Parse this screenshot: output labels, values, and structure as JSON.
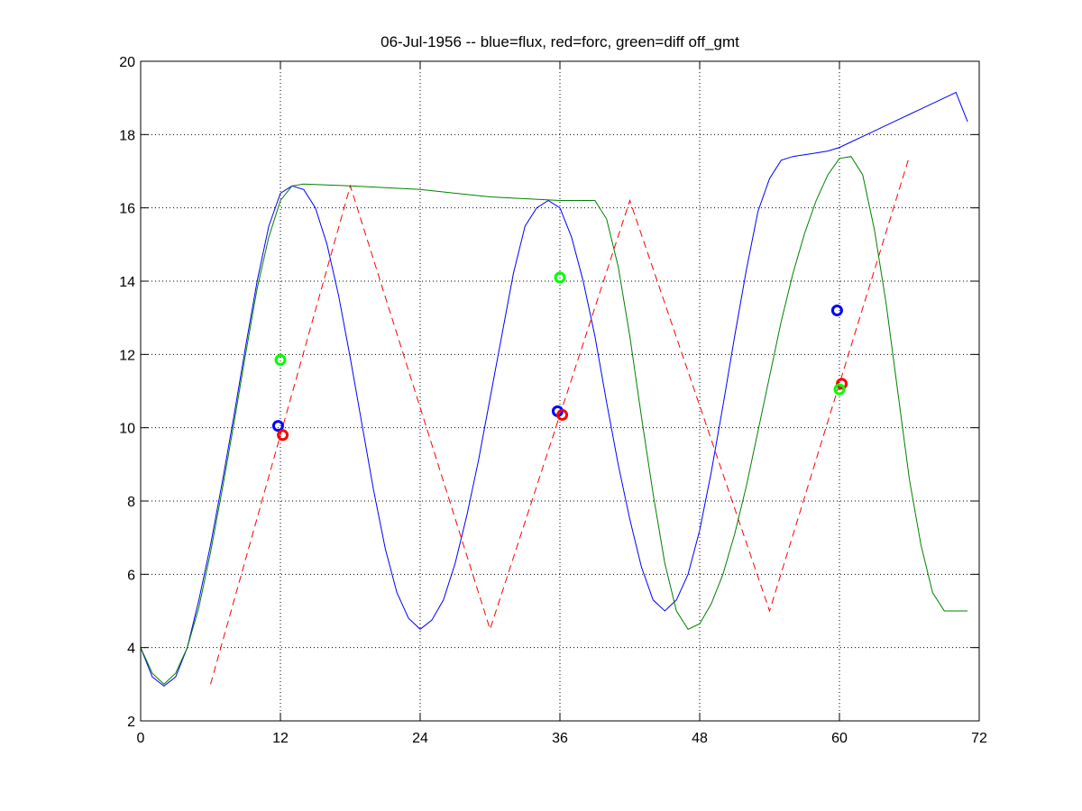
{
  "chart_data": {
    "type": "line",
    "title": "06-Jul-1956 -- blue=flux, red=forc, green=diff off_gmt",
    "xlabel": "",
    "ylabel": "",
    "xlim": [
      0,
      72
    ],
    "ylim": [
      2,
      20
    ],
    "xticks": [
      0,
      12,
      24,
      36,
      48,
      60,
      72
    ],
    "yticks": [
      2,
      4,
      6,
      8,
      10,
      12,
      14,
      16,
      18,
      20
    ],
    "grid": true,
    "series": [
      {
        "name": "flux",
        "color": "#0000ff",
        "style": "solid",
        "x": [
          0,
          1,
          2,
          3,
          4,
          5,
          6,
          7,
          8,
          9,
          10,
          11,
          12,
          13,
          14,
          15,
          16,
          17,
          18,
          19,
          20,
          21,
          22,
          23,
          24,
          25,
          26,
          27,
          28,
          29,
          30,
          31,
          32,
          33,
          34,
          35,
          36,
          37,
          38,
          39,
          40,
          41,
          42,
          43,
          44,
          45,
          46,
          47,
          48,
          49,
          50,
          51,
          52,
          53,
          54,
          55,
          56,
          57,
          58,
          59,
          60,
          61,
          62,
          63,
          64,
          65,
          66,
          67,
          68,
          69,
          70,
          71
        ],
        "y": [
          4.0,
          3.2,
          2.95,
          3.2,
          4.0,
          5.3,
          6.8,
          8.5,
          10.3,
          12.2,
          14.0,
          15.5,
          16.4,
          16.6,
          16.5,
          16.0,
          15.0,
          13.6,
          11.9,
          10.1,
          8.3,
          6.7,
          5.5,
          4.8,
          4.5,
          4.75,
          5.3,
          6.3,
          7.6,
          9.1,
          10.8,
          12.5,
          14.2,
          15.5,
          16.0,
          16.2,
          16.0,
          15.2,
          14.0,
          12.5,
          10.7,
          9.0,
          7.5,
          6.2,
          5.3,
          5.0,
          5.3,
          6.0,
          7.2,
          8.8,
          10.6,
          12.5,
          14.3,
          15.9,
          16.8,
          17.3,
          17.4,
          17.45,
          17.5,
          17.55,
          17.65,
          17.8,
          17.95,
          18.1,
          18.25,
          18.4,
          18.55,
          18.7,
          18.85,
          19.0,
          19.15,
          18.35
        ]
      },
      {
        "name": "forc",
        "color": "#ff0000",
        "style": "dashed",
        "x": [
          6,
          18,
          30,
          42,
          54,
          66
        ],
        "y": [
          3.0,
          16.6,
          4.5,
          16.2,
          5.0,
          17.4
        ]
      },
      {
        "name": "diff",
        "color": "#008000",
        "style": "solid",
        "x": [
          0,
          1,
          2,
          3,
          4,
          5,
          6,
          7,
          8,
          9,
          10,
          11,
          12,
          13,
          14,
          18,
          24,
          30,
          36,
          39,
          40,
          41,
          42,
          43,
          44,
          45,
          46,
          47,
          48,
          49,
          50,
          51,
          52,
          53,
          54,
          55,
          56,
          57,
          58,
          59,
          60,
          61,
          62,
          63,
          64,
          65,
          66,
          67,
          68,
          69,
          70,
          71
        ],
        "y": [
          4.0,
          3.3,
          3.0,
          3.3,
          4.0,
          5.1,
          6.6,
          8.3,
          10.1,
          12.0,
          13.8,
          15.2,
          16.2,
          16.6,
          16.65,
          16.6,
          16.5,
          16.3,
          16.2,
          16.2,
          15.7,
          14.4,
          12.5,
          10.3,
          8.2,
          6.3,
          5.0,
          4.5,
          4.65,
          5.2,
          6.0,
          7.1,
          8.4,
          9.9,
          11.4,
          12.9,
          14.2,
          15.3,
          16.2,
          16.9,
          17.35,
          17.4,
          16.9,
          15.4,
          13.4,
          11.0,
          8.6,
          6.8,
          5.5,
          5.0,
          5.0,
          5.0
        ]
      }
    ],
    "markers": [
      {
        "series": "flux",
        "color": "#0000ff",
        "x": [
          11.8,
          35.8,
          59.8
        ],
        "y": [
          10.05,
          10.45,
          13.2
        ]
      },
      {
        "series": "forc",
        "color": "#ff0000",
        "x": [
          12.2,
          36.2,
          60.2
        ],
        "y": [
          9.8,
          10.35,
          11.2
        ]
      },
      {
        "series": "diff",
        "color": "#00ff00",
        "x": [
          12.0,
          36.0,
          60.0
        ],
        "y": [
          11.85,
          14.1,
          11.05
        ]
      }
    ]
  }
}
